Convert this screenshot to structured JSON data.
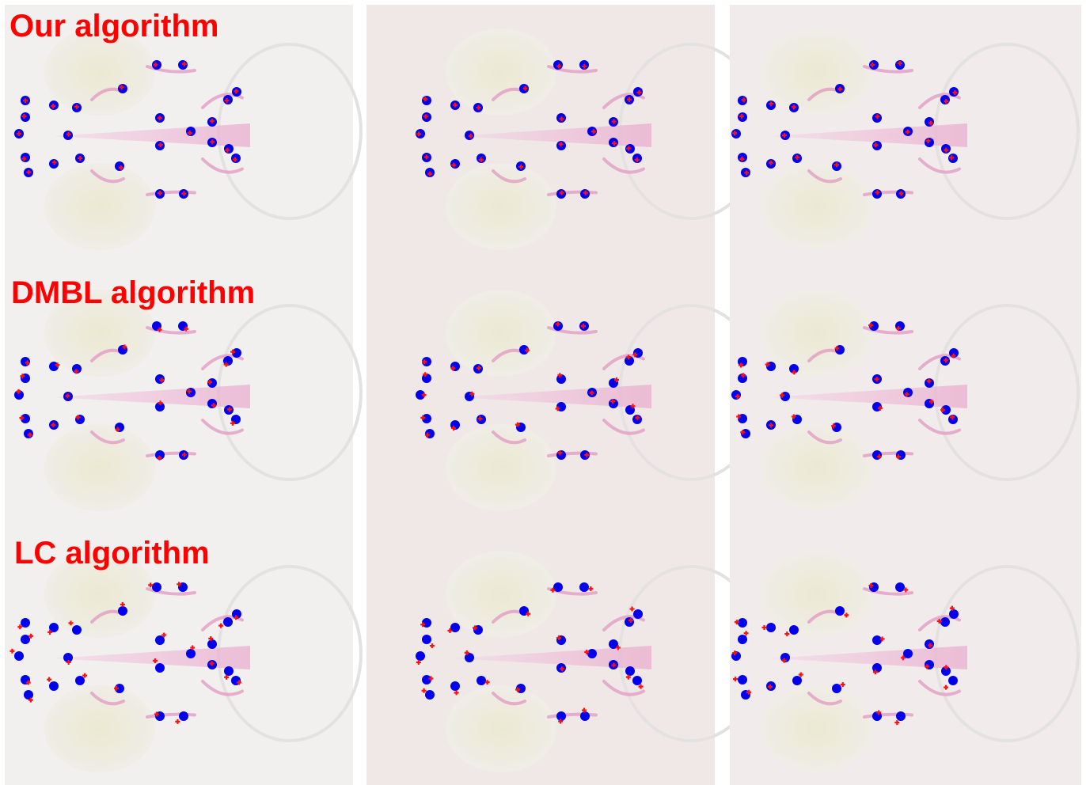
{
  "rows": [
    {
      "label": "Our algorithm"
    },
    {
      "label": "DMBL algorithm"
    },
    {
      "label": "LC algorithm"
    }
  ]
}
